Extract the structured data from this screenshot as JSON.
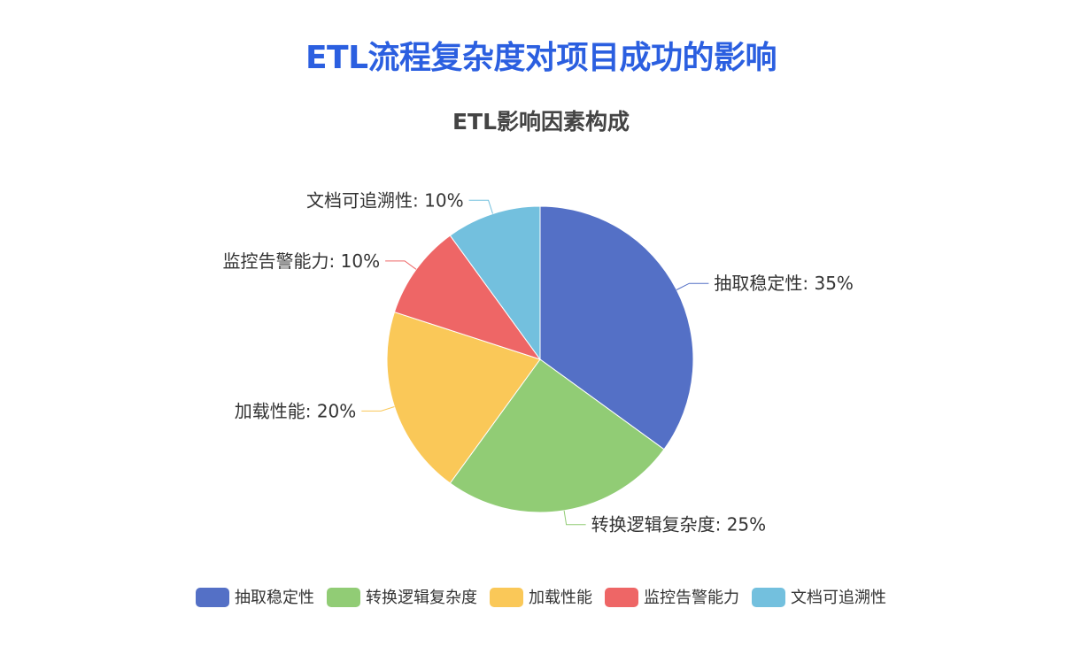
{
  "page": {
    "title": "ETL流程复杂度对项目成功的影响"
  },
  "chart_data": {
    "type": "pie",
    "title": "ETL影响因素构成",
    "unit": "%",
    "legend_position": "bottom",
    "slices": [
      {
        "name": "抽取稳定性",
        "value": 35,
        "color": "#5470c6"
      },
      {
        "name": "转换逻辑复杂度",
        "value": 25,
        "color": "#91cc75"
      },
      {
        "name": "加载性能",
        "value": 20,
        "color": "#fac858"
      },
      {
        "name": "监控告警能力",
        "value": 10,
        "color": "#ee6666"
      },
      {
        "name": "文档可追溯性",
        "value": 10,
        "color": "#73c0de"
      }
    ]
  }
}
